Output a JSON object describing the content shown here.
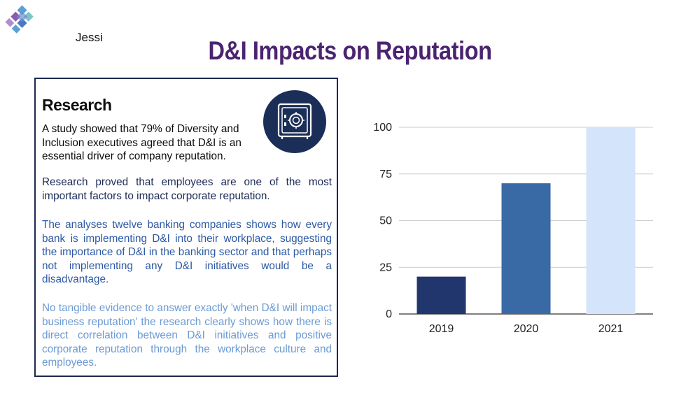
{
  "slide": {
    "author": "Jessi",
    "title": "D&I Impacts on Reputation"
  },
  "card": {
    "heading": "Research",
    "icon": "safe-vault-icon",
    "paragraphs": [
      "A study showed that 79% of Diversity and Inclusion executives agreed that D&I is an essential driver of company reputation.",
      "Research proved that employees are one of the most important factors to impact corporate reputation.",
      "The analyses twelve banking companies shows how every bank is implementing D&I into their workplace, suggesting the importance of D&I in the banking sector and that perhaps not implementing any D&I initiatives would be a disadvantage.",
      "No tangible evidence to answer exactly 'when D&I will impact business reputation' the research clearly shows how there is direct correlation between D&I initiatives and positive corporate reputation through the workplace culture and employees."
    ]
  },
  "colors": {
    "title": "#4b2470",
    "card_border": "#1b2a4e",
    "badge": "#1b2e57",
    "bar_2019": "#22366e",
    "bar_2020": "#3a6aa6",
    "bar_2021": "#d4e4fa"
  },
  "chart_data": {
    "type": "bar",
    "categories": [
      "2019",
      "2020",
      "2021"
    ],
    "values": [
      20,
      70,
      100
    ],
    "ylim": [
      0,
      100
    ],
    "yticks": [
      0,
      25,
      50,
      75,
      100
    ],
    "grid": true,
    "colors": [
      "#22366e",
      "#3a6aa6",
      "#d4e4fa"
    ]
  }
}
